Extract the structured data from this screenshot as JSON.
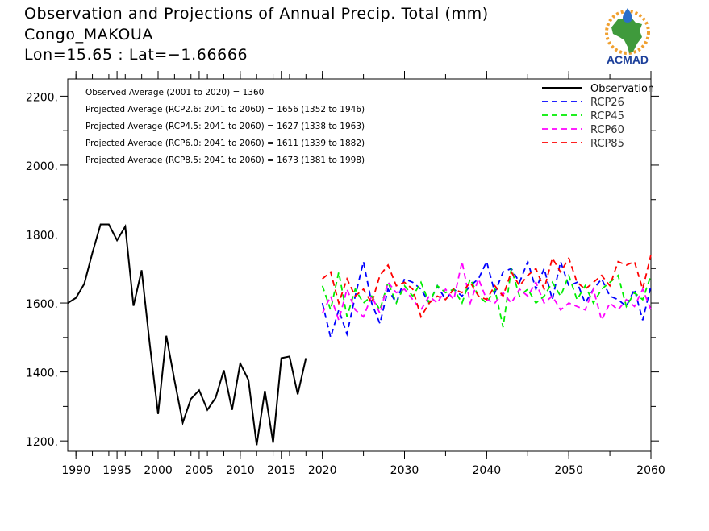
{
  "header": {
    "title": "Observation and Projections of Annual Precip. Total (mm)",
    "location": "Congo_MAKOUA",
    "coords": "Lon=15.65 : Lat=−1.66666"
  },
  "logo": {
    "text": "ACMAD",
    "colors": {
      "africa": "#3f9a3c",
      "ring": "#f0a030",
      "drop": "#2a6fc9",
      "text": "#1c3f9a"
    }
  },
  "annotations": [
    "Observed Average (2001 to 2020) = 1360",
    "Projected Average (RCP2.6: 2041 to 2060) = 1656 (1352 to 1946)",
    "Projected Average (RCP4.5: 2041 to 2060) = 1627 (1338 to 1963)",
    "Projected Average (RCP6.0: 2041 to 2060) = 1611 (1339 to 1882)",
    "Projected Average (RCP8.5: 2041 to 2060) = 1673 (1381 to 1998)"
  ],
  "chart_data": {
    "type": "line",
    "xlim": [
      1989,
      2060
    ],
    "ylim": [
      1170,
      2250
    ],
    "x_ticks": [
      1990,
      1995,
      2000,
      2005,
      2010,
      2015,
      2020,
      2030,
      2040,
      2050,
      2060
    ],
    "x_tick_labels": [
      "1990",
      "1995",
      "2000",
      "2005",
      "2010",
      "2015",
      "2020",
      "2030",
      "2040",
      "2050",
      "2060"
    ],
    "y_ticks": [
      1200,
      1400,
      1600,
      1800,
      2000,
      2200
    ],
    "y_tick_labels": [
      "1200.",
      "1400.",
      "1600.",
      "1800.",
      "2000.",
      "2200."
    ],
    "legend_position": "top-right",
    "series": [
      {
        "name": "Observation",
        "color": "#000000",
        "dashed": false,
        "x": [
          1989,
          1990,
          1991,
          1992,
          1993,
          1994,
          1995,
          1996,
          1997,
          1998,
          1999,
          2000,
          2001,
          2002,
          2003,
          2004,
          2005,
          2006,
          2007,
          2008,
          2009,
          2010,
          2011,
          2012,
          2013,
          2014,
          2015,
          2016,
          2017,
          2018,
          2019,
          2020
        ],
        "values": [
          1600,
          1615,
          1655,
          1745,
          1828,
          1828,
          1782,
          1822,
          1592,
          1695,
          1478,
          1278,
          1505,
          1375,
          1253,
          1322,
          1347,
          1290,
          1325,
          1405,
          1290,
          1425,
          1377,
          1188,
          1345,
          1195,
          1440,
          1445,
          1335,
          1440,
          null,
          null
        ]
      },
      {
        "name": "RCP26",
        "color": "#0000ff",
        "dashed": true,
        "x": [
          2020,
          2021,
          2022,
          2023,
          2024,
          2025,
          2026,
          2027,
          2028,
          2029,
          2030,
          2031,
          2032,
          2033,
          2034,
          2035,
          2036,
          2037,
          2038,
          2039,
          2040,
          2041,
          2042,
          2043,
          2044,
          2045,
          2046,
          2047,
          2048,
          2049,
          2050,
          2051,
          2052,
          2053,
          2054,
          2055,
          2056,
          2057,
          2058,
          2059,
          2060
        ],
        "values": [
          1600,
          1500,
          1580,
          1510,
          1620,
          1720,
          1600,
          1540,
          1640,
          1600,
          1670,
          1660,
          1640,
          1600,
          1650,
          1610,
          1640,
          1620,
          1650,
          1670,
          1720,
          1630,
          1690,
          1700,
          1660,
          1720,
          1640,
          1700,
          1610,
          1720,
          1650,
          1660,
          1600,
          1640,
          1670,
          1620,
          1610,
          1590,
          1640,
          1550,
          1650
        ]
      },
      {
        "name": "RCP45",
        "color": "#00ee00",
        "dashed": true,
        "x": [
          2020,
          2021,
          2022,
          2023,
          2024,
          2025,
          2026,
          2027,
          2028,
          2029,
          2030,
          2031,
          2032,
          2033,
          2034,
          2035,
          2036,
          2037,
          2038,
          2039,
          2040,
          2041,
          2042,
          2043,
          2044,
          2045,
          2046,
          2047,
          2048,
          2049,
          2050,
          2051,
          2052,
          2053,
          2054,
          2055,
          2056,
          2057,
          2058,
          2059,
          2060
        ],
        "values": [
          1650,
          1580,
          1690,
          1560,
          1640,
          1600,
          1620,
          1580,
          1660,
          1600,
          1650,
          1620,
          1660,
          1600,
          1650,
          1630,
          1640,
          1600,
          1670,
          1620,
          1600,
          1640,
          1530,
          1700,
          1620,
          1640,
          1600,
          1620,
          1660,
          1620,
          1680,
          1610,
          1650,
          1600,
          1640,
          1660,
          1680,
          1590,
          1630,
          1610,
          1680
        ]
      },
      {
        "name": "RCP60",
        "color": "#ff00ff",
        "dashed": true,
        "x": [
          2020,
          2021,
          2022,
          2023,
          2024,
          2025,
          2026,
          2027,
          2028,
          2029,
          2030,
          2031,
          2032,
          2033,
          2034,
          2035,
          2036,
          2037,
          2038,
          2039,
          2040,
          2041,
          2042,
          2043,
          2044,
          2045,
          2046,
          2047,
          2048,
          2049,
          2050,
          2051,
          2052,
          2053,
          2054,
          2055,
          2056,
          2057,
          2058,
          2059,
          2060
        ],
        "values": [
          1570,
          1620,
          1550,
          1640,
          1580,
          1560,
          1620,
          1570,
          1660,
          1630,
          1640,
          1610,
          1580,
          1620,
          1600,
          1640,
          1610,
          1720,
          1600,
          1670,
          1610,
          1600,
          1630,
          1600,
          1640,
          1620,
          1660,
          1600,
          1620,
          1580,
          1600,
          1590,
          1580,
          1640,
          1550,
          1600,
          1580,
          1610,
          1590,
          1640,
          1580
        ]
      },
      {
        "name": "RCP85",
        "color": "#ff0000",
        "dashed": true,
        "x": [
          2020,
          2021,
          2022,
          2023,
          2024,
          2025,
          2026,
          2027,
          2028,
          2029,
          2030,
          2031,
          2032,
          2033,
          2034,
          2035,
          2036,
          2037,
          2038,
          2039,
          2040,
          2041,
          2042,
          2043,
          2044,
          2045,
          2046,
          2047,
          2048,
          2049,
          2050,
          2051,
          2052,
          2053,
          2054,
          2055,
          2056,
          2057,
          2058,
          2059,
          2060
        ],
        "values": [
          1670,
          1690,
          1600,
          1670,
          1620,
          1640,
          1600,
          1680,
          1710,
          1650,
          1660,
          1640,
          1560,
          1600,
          1620,
          1610,
          1640,
          1630,
          1660,
          1620,
          1610,
          1650,
          1620,
          1690,
          1650,
          1680,
          1700,
          1640,
          1730,
          1690,
          1730,
          1660,
          1640,
          1660,
          1680,
          1650,
          1720,
          1710,
          1720,
          1640,
          1740
        ]
      }
    ]
  }
}
